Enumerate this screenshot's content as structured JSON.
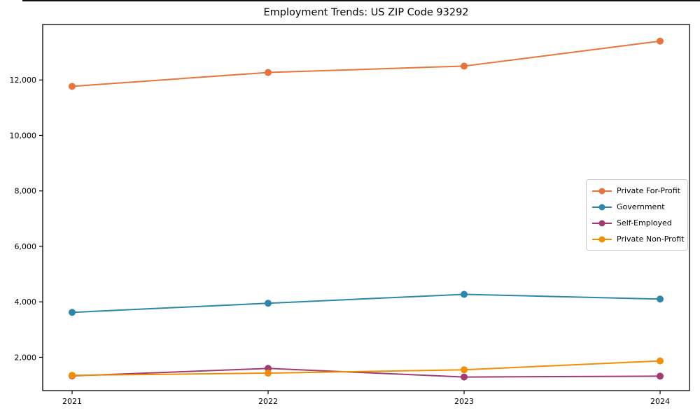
{
  "page": {
    "background": "#ffffff",
    "top_edge_color": "#111111"
  },
  "chart_data": {
    "type": "line",
    "title": "Employment Trends: US ZIP Code 93292",
    "xlabel": "",
    "ylabel": "",
    "grid": false,
    "legend_position": "center-right",
    "axis_color": "#000000",
    "x": [
      2021,
      2022,
      2023,
      2024
    ],
    "x_tick_labels": [
      "2021",
      "2022",
      "2023",
      "2024"
    ],
    "y_ticks": [
      2000,
      4000,
      6000,
      8000,
      10000,
      12000
    ],
    "y_tick_labels": [
      "2,000",
      "4,000",
      "6,000",
      "8,000",
      "10,000",
      "12,000"
    ],
    "xlim": [
      2020.85,
      2024.15
    ],
    "ylim": [
      800,
      14000
    ],
    "series": [
      {
        "name": "Private For-Profit",
        "color": "#E8743B",
        "values": [
          11770,
          12270,
          12500,
          13400
        ]
      },
      {
        "name": "Government",
        "color": "#2E86AB",
        "values": [
          3620,
          3950,
          4270,
          4100
        ]
      },
      {
        "name": "Self-Employed",
        "color": "#A23B72",
        "values": [
          1330,
          1600,
          1290,
          1320
        ]
      },
      {
        "name": "Private Non-Profit",
        "color": "#F18F01",
        "values": [
          1350,
          1430,
          1550,
          1870
        ]
      }
    ]
  }
}
